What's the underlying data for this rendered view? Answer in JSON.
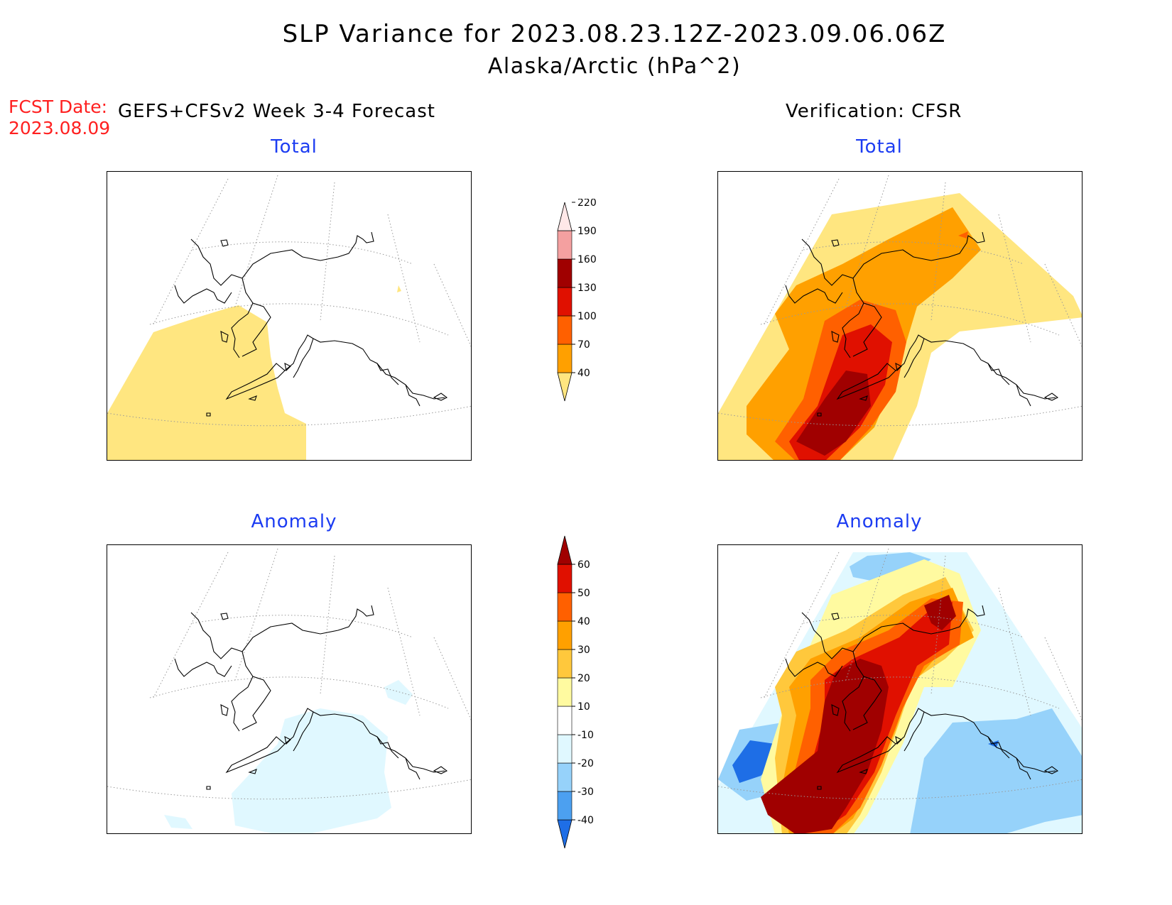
{
  "header": {
    "title_line1": "SLP Variance for 2023.08.23.12Z-2023.09.06.06Z",
    "title_line2": "Alaska/Arctic (hPa^2)",
    "fcst_label": "FCST Date:",
    "fcst_date": "2023.08.09",
    "model_label": "GEFS+CFSv2 Week 3-4 Forecast",
    "verification_label": "Verification: CFSR"
  },
  "panels": {
    "forecast_total_title": "Total",
    "verification_total_title": "Total",
    "forecast_anomaly_title": "Anomaly",
    "verification_anomaly_title": "Anomaly"
  },
  "colorbars": {
    "total": {
      "labels": [
        "40",
        "70",
        "100",
        "130",
        "160",
        "190",
        "220"
      ],
      "colors": [
        "#ffe680",
        "#ffa000",
        "#ff6000",
        "#e01000",
        "#a00000",
        "#f4a0a0",
        "#ffe8e8"
      ]
    },
    "anomaly": {
      "labels": [
        "-40",
        "-30",
        "-20",
        "-10",
        "10",
        "20",
        "30",
        "40",
        "50",
        "60"
      ],
      "colors": [
        "#1e6ee6",
        "#4ca0f0",
        "#96d2fa",
        "#e0f8ff",
        "#ffffff",
        "#fffaa0",
        "#ffc83c",
        "#ffa000",
        "#ff6000",
        "#e01000",
        "#a00000"
      ]
    }
  },
  "map_colors": {
    "land_outline": "#000000",
    "grid": "#999999"
  }
}
